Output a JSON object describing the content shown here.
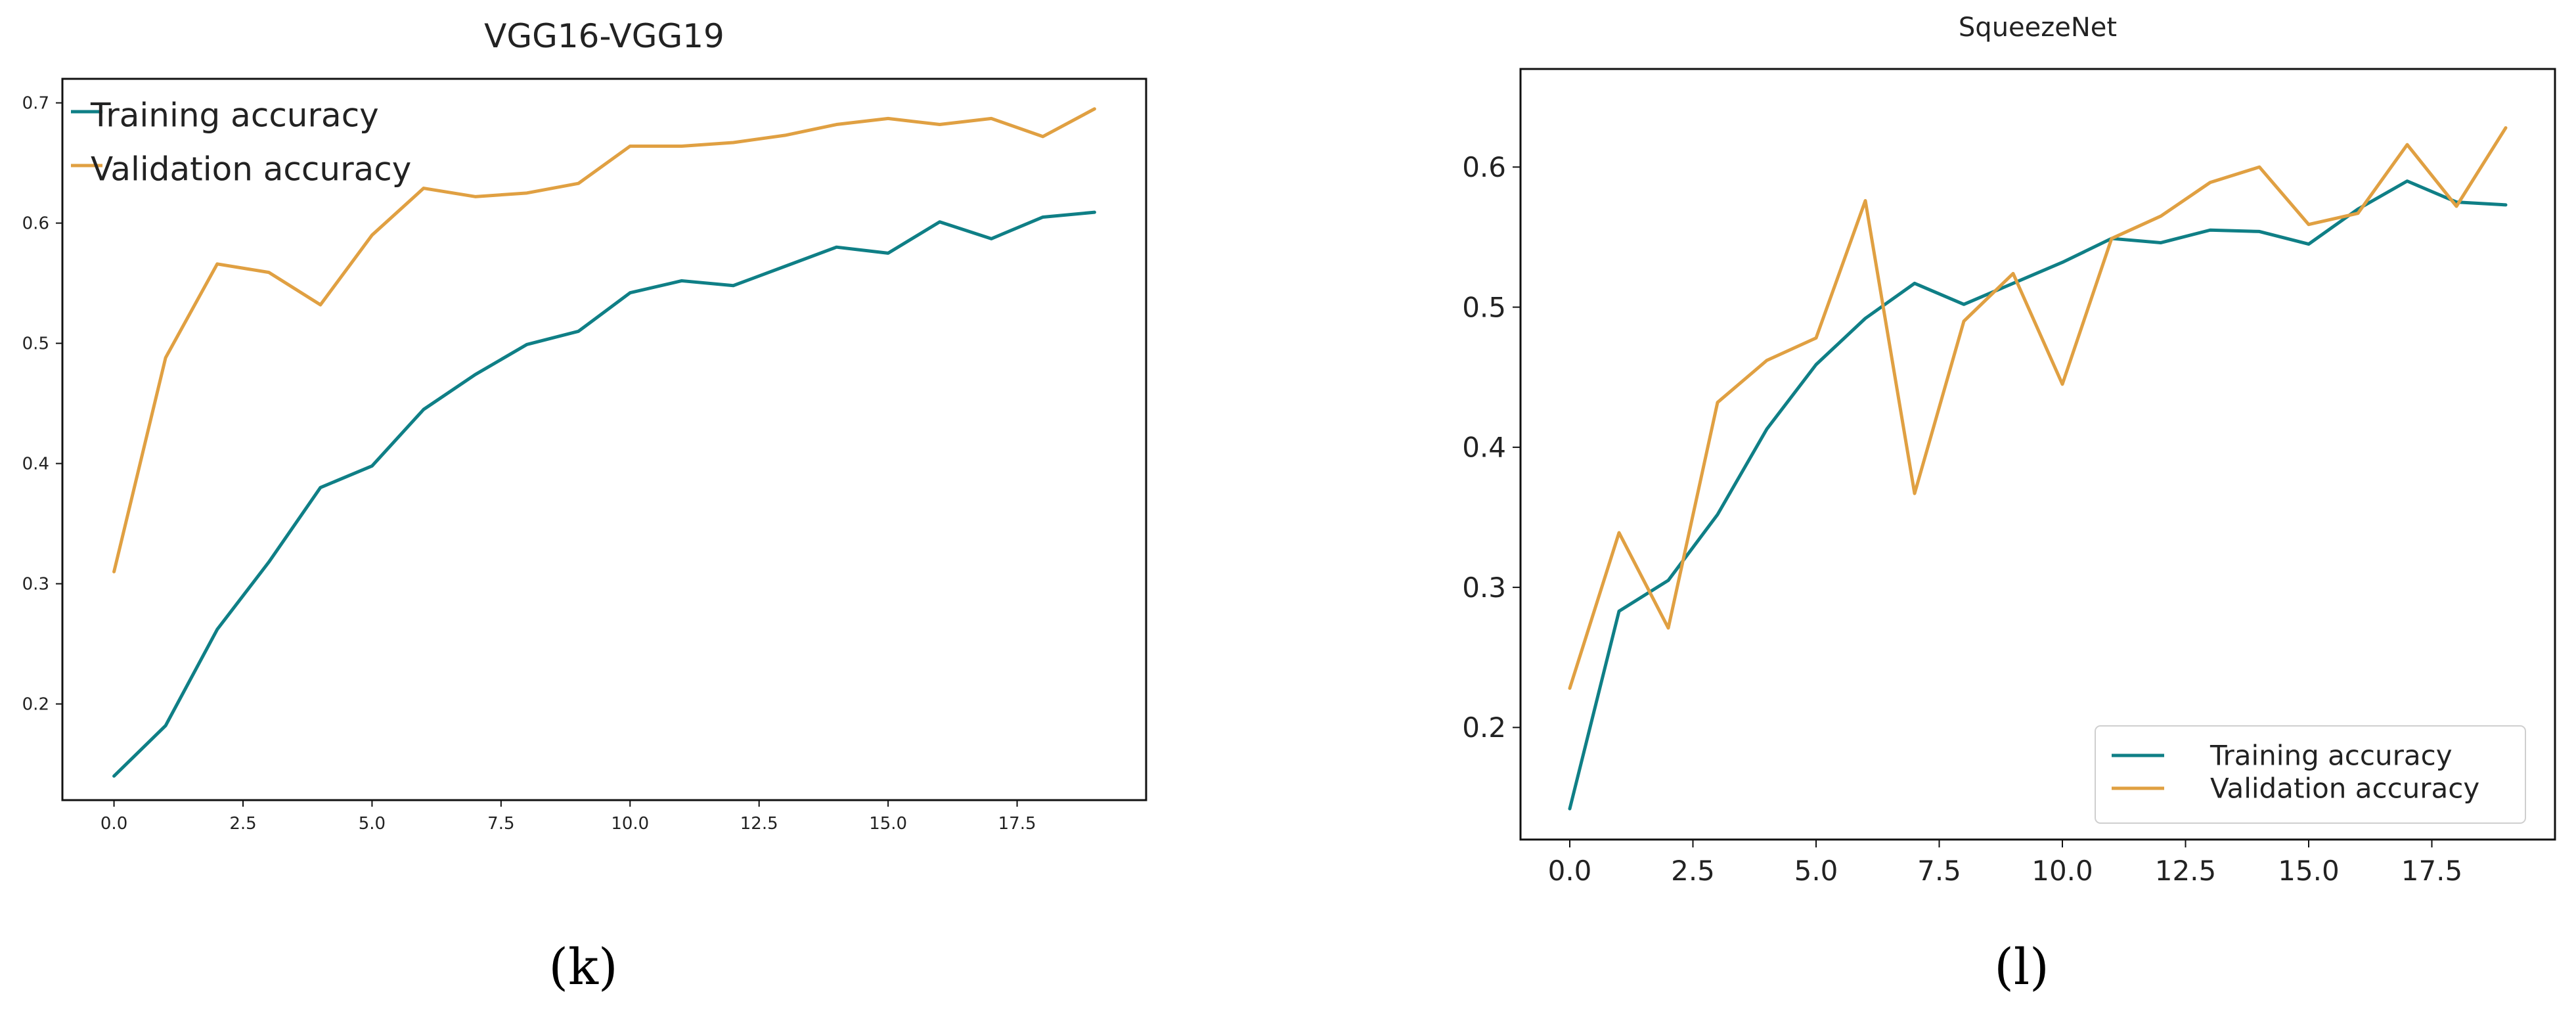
{
  "figure": {
    "captions": [
      "(k)",
      "(l)"
    ]
  },
  "chart_data": [
    {
      "type": "line",
      "title": "VGG16-VGG19",
      "xlabel": "",
      "ylabel": "",
      "x": [
        0,
        1,
        2,
        3,
        4,
        5,
        6,
        7,
        8,
        9,
        10,
        11,
        12,
        13,
        14,
        15,
        16,
        17,
        18,
        19
      ],
      "xticks": [
        0.0,
        2.5,
        5.0,
        7.5,
        10.0,
        12.5,
        15.0,
        17.5
      ],
      "xtick_labels": [
        "0.0",
        "2.5",
        "5.0",
        "7.5",
        "10.0",
        "12.5",
        "15.0",
        "17.5"
      ],
      "yticks": [
        0.2,
        0.3,
        0.4,
        0.5,
        0.6,
        0.7
      ],
      "ytick_labels": [
        "0.2",
        "0.3",
        "0.4",
        "0.5",
        "0.6",
        "0.7"
      ],
      "xlim": [
        -1,
        20
      ],
      "ylim": [
        0.12,
        0.72
      ],
      "grid": false,
      "legend": "top-left",
      "series": [
        {
          "name": "Training accuracy",
          "color": "#0f7f86",
          "values": [
            0.14,
            0.182,
            0.262,
            0.318,
            0.38,
            0.398,
            0.445,
            0.474,
            0.499,
            0.51,
            0.542,
            0.552,
            0.548,
            0.564,
            0.58,
            0.575,
            0.601,
            0.587,
            0.605,
            0.609
          ]
        },
        {
          "name": "Validation accuracy",
          "color": "#e0a042",
          "values": [
            0.31,
            0.488,
            0.566,
            0.559,
            0.532,
            0.59,
            0.629,
            0.622,
            0.625,
            0.633,
            0.664,
            0.664,
            0.667,
            0.673,
            0.682,
            0.687,
            0.682,
            0.687,
            0.672,
            0.695
          ]
        }
      ]
    },
    {
      "type": "line",
      "title": "SqueezeNet",
      "xlabel": "",
      "ylabel": "",
      "x": [
        0,
        1,
        2,
        3,
        4,
        5,
        6,
        7,
        8,
        9,
        10,
        11,
        12,
        13,
        14,
        15,
        16,
        17,
        18,
        19
      ],
      "xticks": [
        0.0,
        2.5,
        5.0,
        7.5,
        10.0,
        12.5,
        15.0,
        17.5
      ],
      "xtick_labels": [
        "0.0",
        "2.5",
        "5.0",
        "7.5",
        "10.0",
        "12.5",
        "15.0",
        "17.5"
      ],
      "yticks": [
        0.2,
        0.3,
        0.4,
        0.5,
        0.6
      ],
      "ytick_labels": [
        "0.2",
        "0.3",
        "0.4",
        "0.5",
        "0.6"
      ],
      "xlim": [
        -1,
        20
      ],
      "ylim": [
        0.12,
        0.67
      ],
      "grid": false,
      "legend": "bottom-right",
      "series": [
        {
          "name": "Training accuracy",
          "color": "#0f7f86",
          "values": [
            0.142,
            0.283,
            0.305,
            0.352,
            0.413,
            0.459,
            0.492,
            0.517,
            0.502,
            0.517,
            0.532,
            0.549,
            0.546,
            0.555,
            0.554,
            0.545,
            0.57,
            0.59,
            0.575,
            0.573
          ]
        },
        {
          "name": "Validation accuracy",
          "color": "#e0a042",
          "values": [
            0.228,
            0.339,
            0.271,
            0.432,
            0.462,
            0.478,
            0.576,
            0.367,
            0.49,
            0.524,
            0.445,
            0.549,
            0.565,
            0.589,
            0.6,
            0.559,
            0.567,
            0.616,
            0.572,
            0.628
          ]
        }
      ]
    }
  ]
}
